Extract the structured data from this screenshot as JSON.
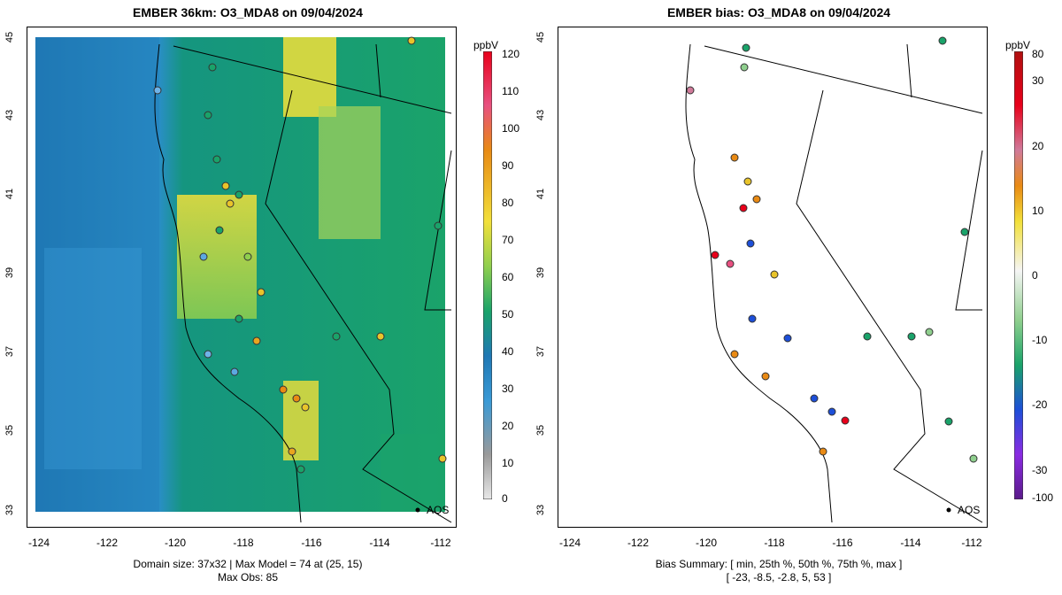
{
  "left": {
    "title": "EMBER 36km: O3_MDA8 on 09/04/2024",
    "footer_line1": "Domain size: 37x32 | Max Model = 74 at (25, 15)",
    "footer_line2": "Max Obs: 85",
    "colorbar_unit": "ppbV",
    "colorbar_ticks": [
      "120",
      "110",
      "100",
      "90",
      "80",
      "70",
      "60",
      "50",
      "40",
      "30",
      "20",
      "10",
      "0"
    ]
  },
  "right": {
    "title": "EMBER bias: O3_MDA8 on 09/04/2024",
    "footer_line1": "Bias Summary: [ min, 25th %, 50th %, 75th %, max ]",
    "footer_line2": "[ -23,   -8.5,   -2.8,   5,   53 ]",
    "colorbar_unit": "ppbV",
    "colorbar_ticks": [
      "80",
      "30",
      "20",
      "10",
      "0",
      "-10",
      "-20",
      "-30",
      "-100"
    ]
  },
  "axes": {
    "y_ticks": [
      "45",
      "43",
      "41",
      "39",
      "37",
      "35",
      "33"
    ],
    "x_ticks": [
      "-124",
      "-122",
      "-120",
      "-118",
      "-116",
      "-114",
      "-112"
    ]
  },
  "aqs_label": "AQS",
  "colors": {
    "model_low": "#1f78b4",
    "model_mid": "#1aa36a",
    "model_high": "#f2e03a",
    "obs_high": "#e98a14",
    "bias_pos": "#e98a14",
    "bias_neg": "#1d4fd8"
  }
}
